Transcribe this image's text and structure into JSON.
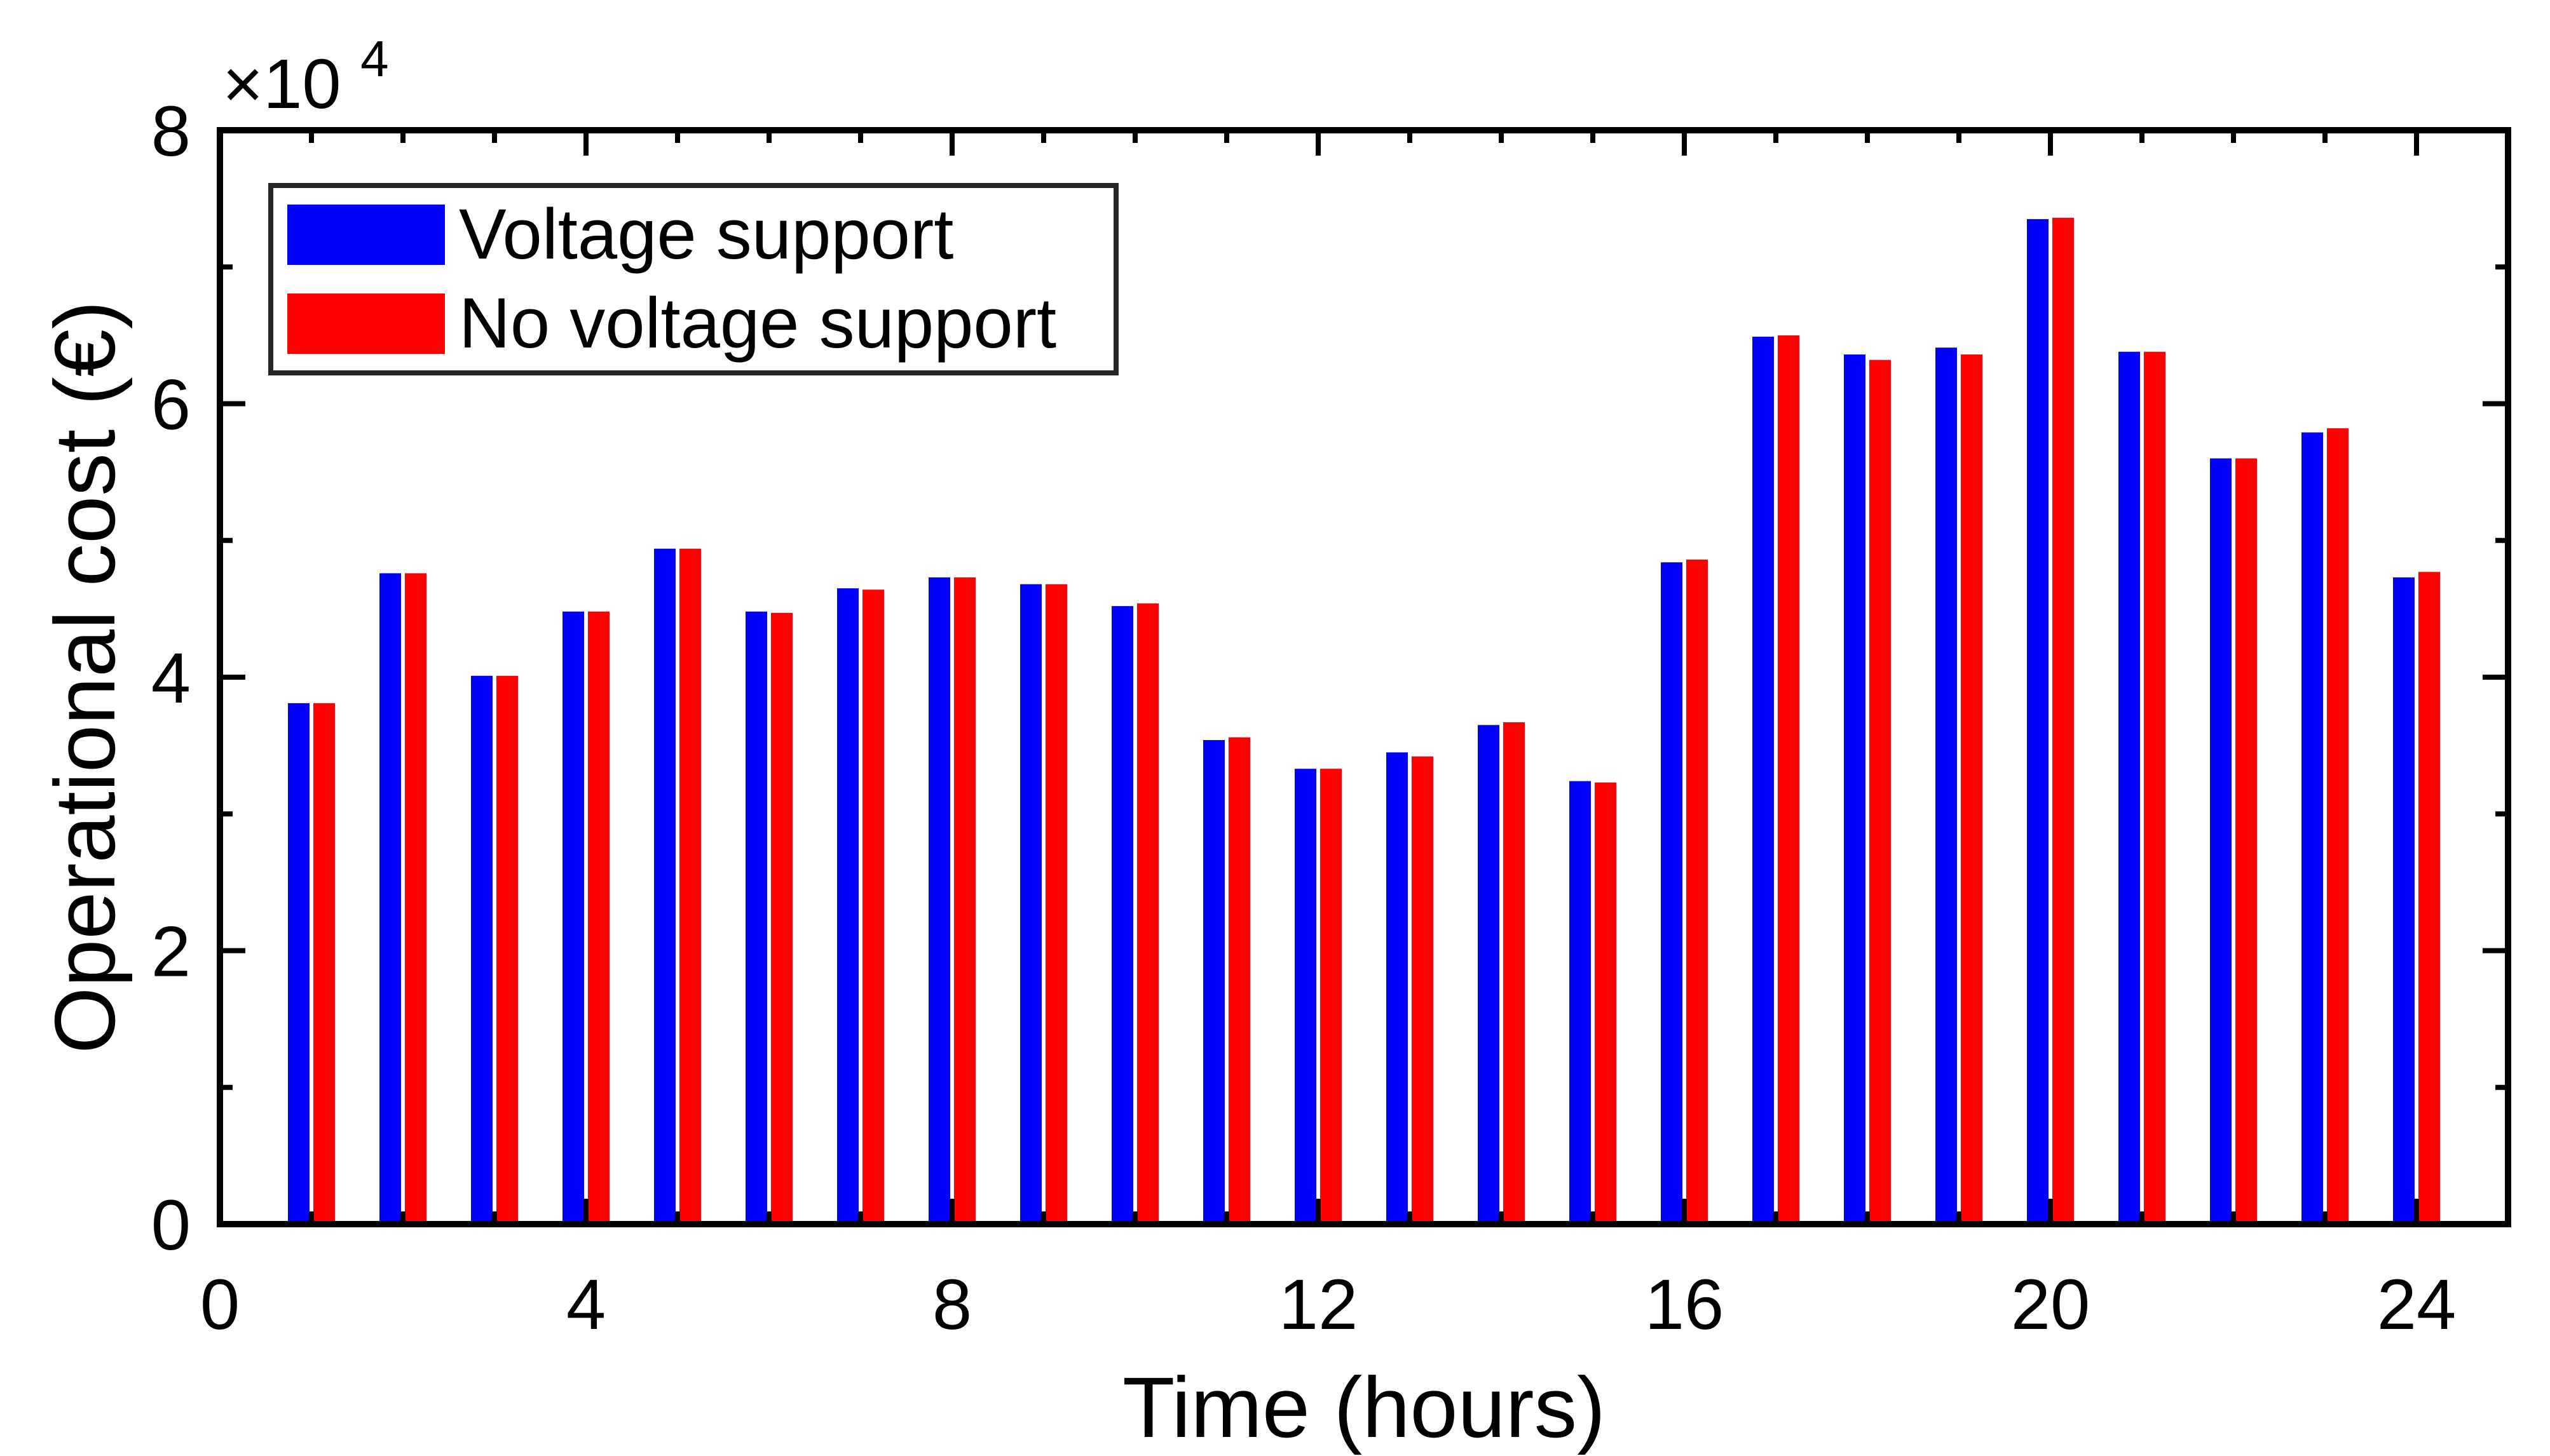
{
  "chart_data": {
    "type": "bar",
    "xlabel": "Time (hours)",
    "ylabel": "Operational cost (€)",
    "y_multiplier": {
      "base": "×10",
      "exponent": "4"
    },
    "xlim": [
      0,
      25
    ],
    "ylim": [
      0,
      80000
    ],
    "x_ticks": [
      0,
      4,
      8,
      12,
      16,
      20,
      24
    ],
    "x_tick_labels": [
      "0",
      "4",
      "8",
      "12",
      "16",
      "20",
      "24"
    ],
    "y_ticks": [
      0,
      20000,
      40000,
      60000,
      80000
    ],
    "y_tick_labels": [
      "0",
      "2",
      "4",
      "6",
      "8"
    ],
    "grid": false,
    "legend_position": "top-left",
    "x": [
      1,
      2,
      3,
      4,
      5,
      6,
      7,
      8,
      9,
      10,
      11,
      12,
      13,
      14,
      15,
      16,
      17,
      18,
      19,
      20,
      21,
      22,
      23,
      24
    ],
    "series": [
      {
        "name": "Voltage support",
        "color": "#0000ff",
        "values": [
          38100,
          47600,
          40100,
          44800,
          49400,
          44800,
          46500,
          47300,
          46800,
          45200,
          35400,
          33300,
          34500,
          36500,
          32400,
          48400,
          64900,
          63600,
          64100,
          73500,
          63800,
          56000,
          57900,
          47300
        ]
      },
      {
        "name": "No voltage support",
        "color": "#ff0000",
        "values": [
          38100,
          47600,
          40100,
          44800,
          49400,
          44700,
          46400,
          47300,
          46800,
          45400,
          35600,
          33300,
          34200,
          36700,
          32300,
          48600,
          65000,
          63200,
          63600,
          73600,
          63800,
          56000,
          58200,
          47700
        ]
      }
    ]
  }
}
